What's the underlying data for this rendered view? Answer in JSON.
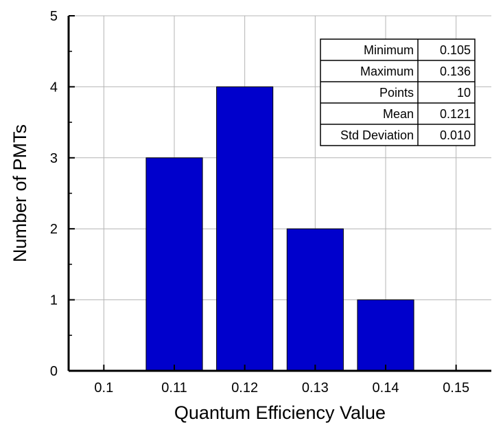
{
  "chart_data": {
    "type": "bar",
    "title": "",
    "xlabel": "Quantum Efficiency Value",
    "ylabel": "Number of PMTs",
    "x_tick_labels": [
      "0.1",
      "0.11",
      "0.12",
      "0.13",
      "0.14",
      "0.15"
    ],
    "x_ticks": [
      0.1,
      0.11,
      0.12,
      0.13,
      0.14,
      0.15
    ],
    "y_tick_labels": [
      "0",
      "1",
      "2",
      "3",
      "4",
      "5"
    ],
    "y_ticks": [
      0,
      1,
      2,
      3,
      4,
      5
    ],
    "xlim": [
      0.095,
      0.155
    ],
    "ylim": [
      0,
      5
    ],
    "bin_width": 0.008,
    "bars": [
      {
        "x": 0.11,
        "value": 3
      },
      {
        "x": 0.12,
        "value": 4
      },
      {
        "x": 0.13,
        "value": 2
      },
      {
        "x": 0.14,
        "value": 1
      }
    ],
    "bar_color": "#0000cc",
    "grid": true,
    "stats_table": [
      {
        "label": "Minimum",
        "value": "0.105"
      },
      {
        "label": "Maximum",
        "value": "0.136"
      },
      {
        "label": "Points",
        "value": "10"
      },
      {
        "label": "Mean",
        "value": "0.121"
      },
      {
        "label": "Std Deviation",
        "value": "0.010"
      }
    ]
  }
}
